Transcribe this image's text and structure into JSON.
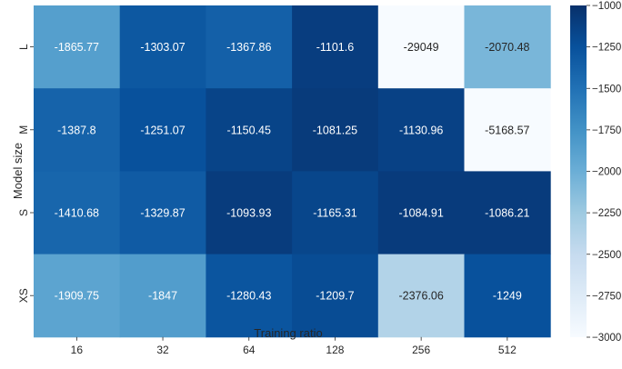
{
  "chart_data": {
    "type": "heatmap",
    "title": "",
    "xlabel": "Training ratio",
    "ylabel": "Model size",
    "x_categories": [
      "16",
      "32",
      "64",
      "128",
      "256",
      "512"
    ],
    "y_categories": [
      "L",
      "M",
      "S",
      "XS"
    ],
    "values": [
      [
        -1865.77,
        -1303.07,
        -1367.86,
        -1101.6,
        -29049,
        -2070.48
      ],
      [
        -1387.8,
        -1251.07,
        -1150.45,
        -1081.25,
        -1130.96,
        -5168.57
      ],
      [
        -1410.68,
        -1329.87,
        -1093.93,
        -1165.31,
        -1084.91,
        -1086.21
      ],
      [
        -1909.75,
        -1847,
        -1280.43,
        -1209.7,
        -2376.06,
        -1249
      ]
    ],
    "value_labels": [
      [
        "-1865.77",
        "-1303.07",
        "-1367.86",
        "-1101.6",
        "-29049",
        "-2070.48"
      ],
      [
        "-1387.8",
        "-1251.07",
        "-1150.45",
        "-1081.25",
        "-1130.96",
        "-5168.57"
      ],
      [
        "-1410.68",
        "-1329.87",
        "-1093.93",
        "-1165.31",
        "-1084.91",
        "-1086.21"
      ],
      [
        "-1909.75",
        "-1847",
        "-1280.43",
        "-1209.7",
        "-2376.06",
        "-1249"
      ]
    ],
    "colorscale": {
      "name": "Blues",
      "vmin": -3000,
      "vmax": -1000,
      "ticks": [
        -1000,
        -1250,
        -1500,
        -1750,
        -2000,
        -2250,
        -2500,
        -2750,
        -3000
      ],
      "tick_labels": [
        "−1000",
        "−1250",
        "−1500",
        "−1750",
        "−2000",
        "−2250",
        "−2500",
        "−2750",
        "−3000"
      ]
    },
    "colorbar_placement": "right",
    "grid": false
  }
}
